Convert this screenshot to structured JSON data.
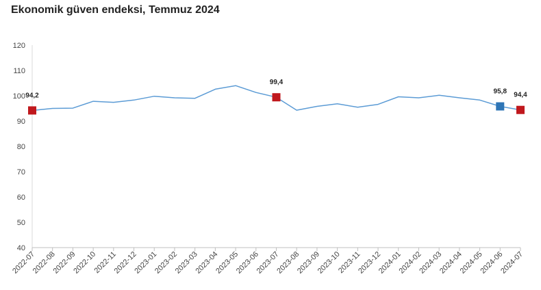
{
  "chart_data": {
    "type": "line",
    "title": "Ekonomik güven endeksi, Temmuz 2024",
    "categories": [
      "2022-07",
      "2022-08",
      "2022-09",
      "2022-10",
      "2022-11",
      "2022-12",
      "2023-01",
      "2023-02",
      "2023-03",
      "2023-04",
      "2023-05",
      "2023-06",
      "2023-07",
      "2023-08",
      "2023-09",
      "2023-10",
      "2023-11",
      "2023-12",
      "2024-01",
      "2024-02",
      "2024-03",
      "2024-04",
      "2024-05",
      "2024-06",
      "2024-07"
    ],
    "values": [
      94.2,
      95.0,
      95.1,
      97.8,
      97.4,
      98.3,
      99.8,
      99.2,
      99.0,
      102.6,
      104.0,
      101.3,
      99.4,
      94.3,
      95.8,
      96.8,
      95.5,
      96.6,
      99.6,
      99.2,
      100.2,
      99.2,
      98.3,
      95.8,
      94.4
    ],
    "ylim": [
      40,
      120
    ],
    "yticks": [
      40,
      50,
      60,
      70,
      80,
      90,
      100,
      110,
      120
    ],
    "line_color": "#5b9bd5",
    "markers": [
      {
        "index": 0,
        "label": "94,2",
        "color": "#c0181d"
      },
      {
        "index": 12,
        "label": "99,4",
        "color": "#c0181d"
      },
      {
        "index": 23,
        "label": "95,8",
        "color": "#2e75b6"
      },
      {
        "index": 24,
        "label": "94,4",
        "color": "#c0181d"
      }
    ],
    "grid": false,
    "legend": "none"
  }
}
